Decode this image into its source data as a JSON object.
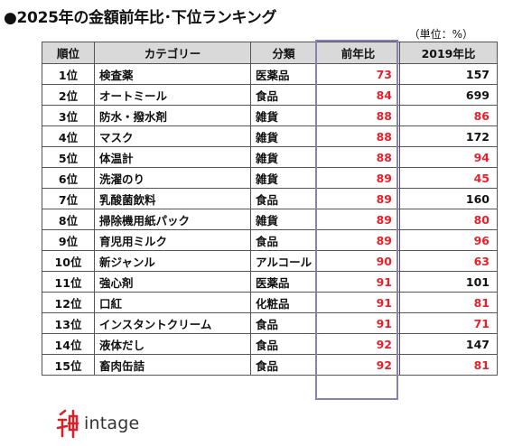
{
  "title": "●2025年の金額前年比･下位ランキング",
  "unit_note": "（単位：%）",
  "table": {
    "headers": [
      "順位",
      "カテゴリー",
      "分類",
      "前年比",
      "2019年比"
    ],
    "rows": [
      {
        "rank": "1位",
        "category": "検査薬",
        "type": "医薬品",
        "yoy": "73",
        "vs2019": "157",
        "vs2019_red": false
      },
      {
        "rank": "2位",
        "category": "オートミール",
        "type": "食品",
        "yoy": "84",
        "vs2019": "699",
        "vs2019_red": false
      },
      {
        "rank": "3位",
        "category": "防水・撥水剤",
        "type": "雑貨",
        "yoy": "88",
        "vs2019": "86",
        "vs2019_red": true
      },
      {
        "rank": "4位",
        "category": "マスク",
        "type": "雑貨",
        "yoy": "88",
        "vs2019": "172",
        "vs2019_red": false
      },
      {
        "rank": "5位",
        "category": "体温計",
        "type": "雑貨",
        "yoy": "88",
        "vs2019": "94",
        "vs2019_red": true
      },
      {
        "rank": "6位",
        "category": "洗濯のり",
        "type": "雑貨",
        "yoy": "89",
        "vs2019": "45",
        "vs2019_red": true
      },
      {
        "rank": "7位",
        "category": "乳酸菌飲料",
        "type": "食品",
        "yoy": "89",
        "vs2019": "160",
        "vs2019_red": false
      },
      {
        "rank": "8位",
        "category": "掃除機用紙パック",
        "type": "雑貨",
        "yoy": "89",
        "vs2019": "80",
        "vs2019_red": true
      },
      {
        "rank": "9位",
        "category": "育児用ミルク",
        "type": "食品",
        "yoy": "89",
        "vs2019": "96",
        "vs2019_red": true
      },
      {
        "rank": "10位",
        "category": "新ジャンル",
        "type": "アルコール",
        "yoy": "90",
        "vs2019": "63",
        "vs2019_red": true
      },
      {
        "rank": "11位",
        "category": "強心剤",
        "type": "医薬品",
        "yoy": "91",
        "vs2019": "101",
        "vs2019_red": false
      },
      {
        "rank": "12位",
        "category": "口紅",
        "type": "化粧品",
        "yoy": "91",
        "vs2019": "81",
        "vs2019_red": true
      },
      {
        "rank": "13位",
        "category": "インスタントクリーム",
        "type": "食品",
        "yoy": "91",
        "vs2019": "71",
        "vs2019_red": true
      },
      {
        "rank": "14位",
        "category": "液体だし",
        "type": "食品",
        "yoy": "92",
        "vs2019": "147",
        "vs2019_red": false
      },
      {
        "rank": "15位",
        "category": "畜肉缶詰",
        "type": "食品",
        "yoy": "92",
        "vs2019": "81",
        "vs2019_red": true
      }
    ]
  },
  "logo": {
    "word": "intage",
    "mark_color": "#d0252c"
  },
  "colors": {
    "red_value": "#e8202a",
    "header_bg": "#d9d9d9",
    "highlight_border": "#8a7fb8"
  }
}
